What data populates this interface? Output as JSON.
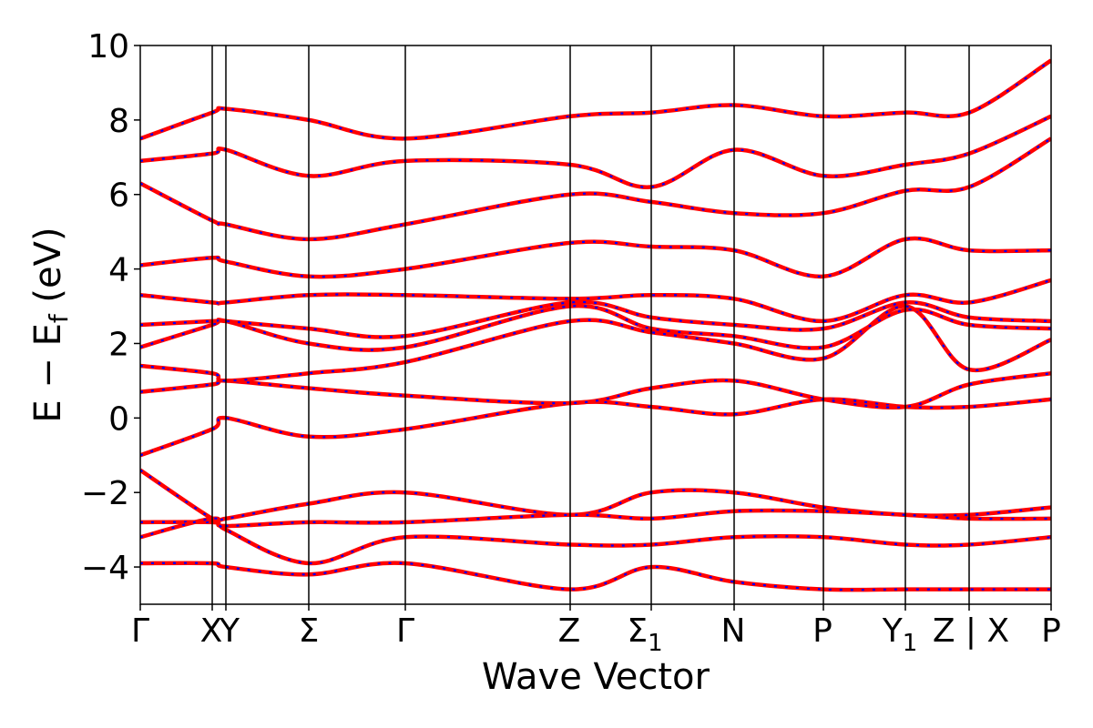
{
  "chart_data": {
    "type": "line",
    "title": "",
    "xlabel": "Wave Vector",
    "ylabel": "E − E_f (eV)",
    "ylabel_parts": {
      "main": "E − E",
      "subscript": "f",
      "unit": " (eV)"
    },
    "ylim": [
      -5,
      10
    ],
    "yticks": [
      -4,
      -2,
      0,
      2,
      4,
      6,
      8,
      10
    ],
    "ytick_labels": [
      "−4",
      "−2",
      "0",
      "2",
      "4",
      "6",
      "8",
      "10"
    ],
    "grid": false,
    "legend": "none",
    "kpath": [
      {
        "x": 0.0,
        "label": "Γ",
        "sub": ""
      },
      {
        "x": 0.79,
        "label": "X",
        "sub": ""
      },
      {
        "x": 0.94,
        "label": "Y",
        "sub": ""
      },
      {
        "x": 1.85,
        "label": "Σ",
        "sub": ""
      },
      {
        "x": 2.91,
        "label": "Γ",
        "sub": ""
      },
      {
        "x": 4.72,
        "label": "Z",
        "sub": ""
      },
      {
        "x": 5.61,
        "label": "Σ",
        "sub": "1"
      },
      {
        "x": 6.52,
        "label": "N",
        "sub": ""
      },
      {
        "x": 7.5,
        "label": "P",
        "sub": ""
      },
      {
        "x": 8.4,
        "label": "Y",
        "sub": "1"
      },
      {
        "x": 9.1,
        "label": "Z|X",
        "sub": ""
      },
      {
        "x": 10.0,
        "label": "P",
        "sub": ""
      }
    ],
    "kpath_tick_text": [
      "Γ",
      "X",
      "Y",
      "Σ",
      "Γ",
      "Z",
      "Σ1",
      "N",
      "P",
      "Y1",
      "Z | X",
      "P"
    ],
    "x_range": [
      0,
      10
    ],
    "series_colors": {
      "dft": "#ff0000",
      "model": "#0000ff"
    },
    "bands": [
      [
        -1.0,
        -0.3,
        0.0,
        -0.5,
        -0.3,
        0.4,
        0.3,
        0.1,
        0.5,
        0.3,
        0.3,
        0.5
      ],
      [
        0.7,
        0.9,
        1.0,
        0.8,
        0.6,
        0.4,
        0.8,
        1.0,
        0.5,
        0.3,
        0.9,
        1.2
      ],
      [
        1.4,
        1.2,
        1.0,
        1.2,
        1.5,
        2.6,
        2.3,
        2.0,
        1.6,
        3.0,
        1.3,
        2.1
      ],
      [
        1.9,
        2.5,
        2.6,
        2.0,
        1.9,
        3.0,
        2.4,
        2.2,
        1.9,
        2.9,
        2.5,
        2.4
      ],
      [
        2.5,
        2.6,
        2.6,
        2.4,
        2.2,
        3.1,
        2.7,
        2.5,
        2.4,
        3.1,
        2.7,
        2.6
      ],
      [
        3.3,
        3.1,
        3.1,
        3.3,
        3.3,
        3.2,
        3.3,
        3.2,
        2.6,
        3.3,
        3.1,
        3.7
      ],
      [
        4.1,
        4.3,
        4.2,
        3.8,
        4.0,
        4.7,
        4.6,
        4.5,
        3.8,
        4.8,
        4.5,
        4.5
      ],
      [
        6.3,
        5.3,
        5.2,
        4.8,
        5.2,
        6.0,
        5.8,
        5.5,
        5.5,
        6.1,
        6.2,
        7.5
      ],
      [
        6.9,
        7.1,
        7.2,
        6.5,
        6.9,
        6.8,
        6.2,
        7.2,
        6.5,
        6.8,
        7.1,
        8.1
      ],
      [
        7.5,
        8.2,
        8.3,
        8.0,
        7.5,
        8.1,
        8.2,
        8.4,
        8.1,
        8.2,
        8.2,
        9.6
      ]
    ],
    "lower_bands": [
      [
        -1.4,
        -2.7,
        -2.7,
        -2.3,
        -2.0,
        -2.6,
        -2.0,
        -2.0,
        -2.4,
        -2.6,
        -2.6,
        -2.4
      ],
      [
        -2.8,
        -2.8,
        -2.9,
        -2.8,
        -2.8,
        -2.6,
        -2.7,
        -2.5,
        -2.5,
        -2.6,
        -2.7,
        -2.7
      ],
      [
        -3.2,
        -2.7,
        -3.0,
        -3.9,
        -3.2,
        -3.4,
        -3.4,
        -3.2,
        -3.2,
        -3.4,
        -3.4,
        -3.2
      ],
      [
        -3.9,
        -3.9,
        -4.0,
        -4.2,
        -3.9,
        -4.6,
        -4.0,
        -4.4,
        -4.6,
        -4.6,
        -4.6,
        -4.6
      ]
    ]
  }
}
